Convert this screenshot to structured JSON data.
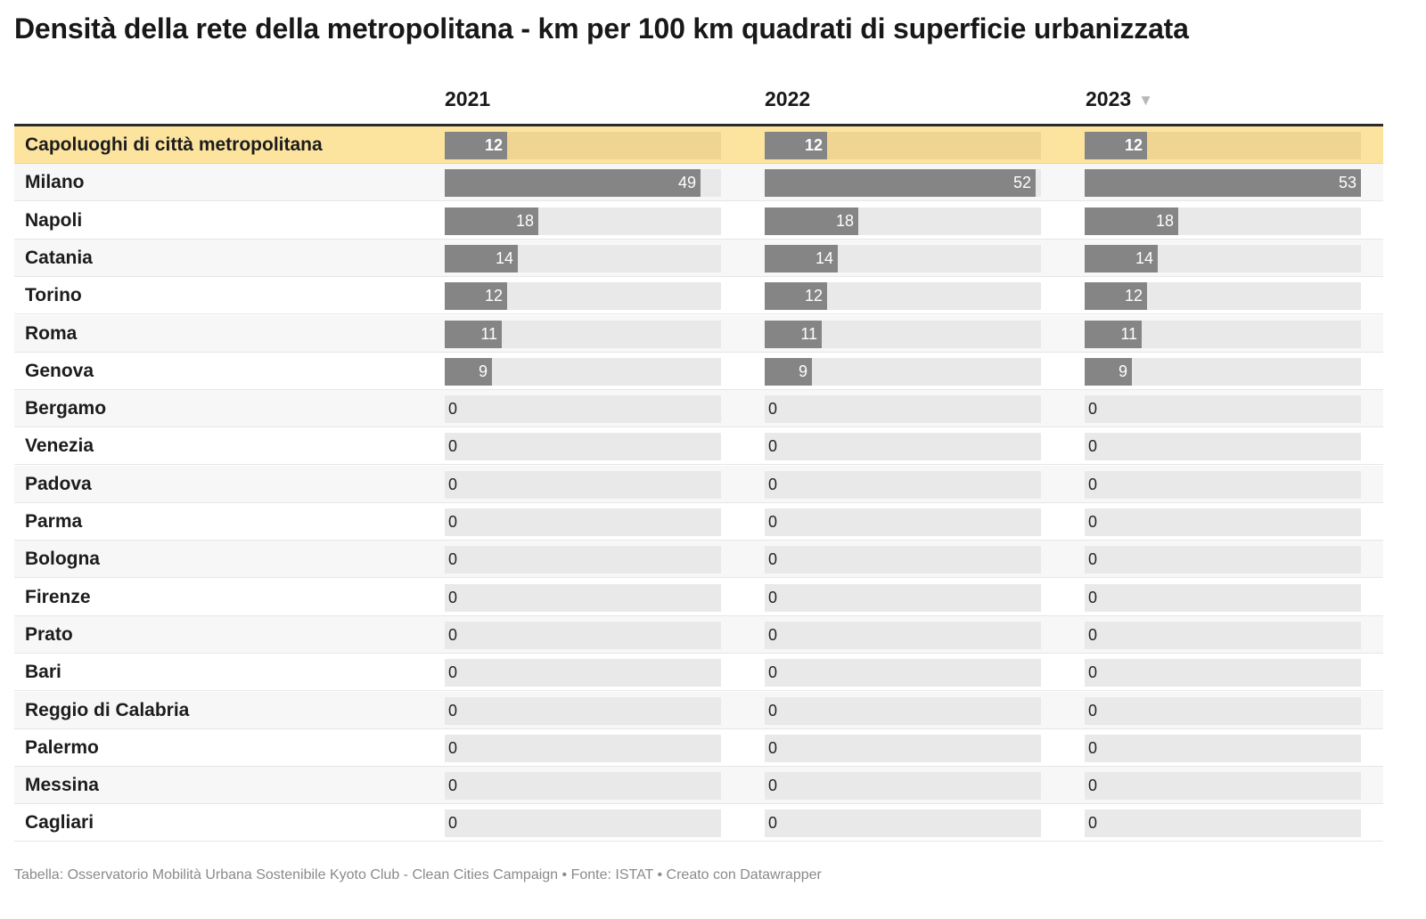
{
  "title": "Densità della rete della metropolitana - km per 100 km quadrati di superficie urbanizzata",
  "columns": [
    {
      "label": "2021",
      "sorted": false
    },
    {
      "label": "2022",
      "sorted": false
    },
    {
      "label": "2023",
      "sorted": true,
      "sort_icon": "sort-descending-icon",
      "sort_glyph": "▼"
    }
  ],
  "colors": {
    "bar": "#858585",
    "track": "#e9e9e9",
    "highlight_row": "#fde49e",
    "highlight_track": "#efd591"
  },
  "footer": "Tabella: Osservatorio Mobilità Urbana Sostenibile Kyoto Club - Clean Cities Campaign • Fonte: ISTAT • Creato con Datawrapper",
  "chart_data": {
    "type": "table",
    "categories": [
      "Capoluoghi di città metropolitana",
      "Milano",
      "Napoli",
      "Catania",
      "Torino",
      "Roma",
      "Genova",
      "Bergamo",
      "Venezia",
      "Padova",
      "Parma",
      "Bologna",
      "Firenze",
      "Prato",
      "Bari",
      "Reggio di Calabria",
      "Palermo",
      "Messina",
      "Cagliari"
    ],
    "highlighted": "Capoluoghi di città metropolitana",
    "bar_max": 53,
    "series": [
      {
        "name": "2021",
        "values": [
          12,
          49,
          18,
          14,
          12,
          11,
          9,
          0,
          0,
          0,
          0,
          0,
          0,
          0,
          0,
          0,
          0,
          0,
          0
        ]
      },
      {
        "name": "2022",
        "values": [
          12,
          52,
          18,
          14,
          12,
          11,
          9,
          0,
          0,
          0,
          0,
          0,
          0,
          0,
          0,
          0,
          0,
          0,
          0
        ]
      },
      {
        "name": "2023",
        "values": [
          12,
          53,
          18,
          14,
          12,
          11,
          9,
          0,
          0,
          0,
          0,
          0,
          0,
          0,
          0,
          0,
          0,
          0,
          0
        ]
      }
    ]
  }
}
